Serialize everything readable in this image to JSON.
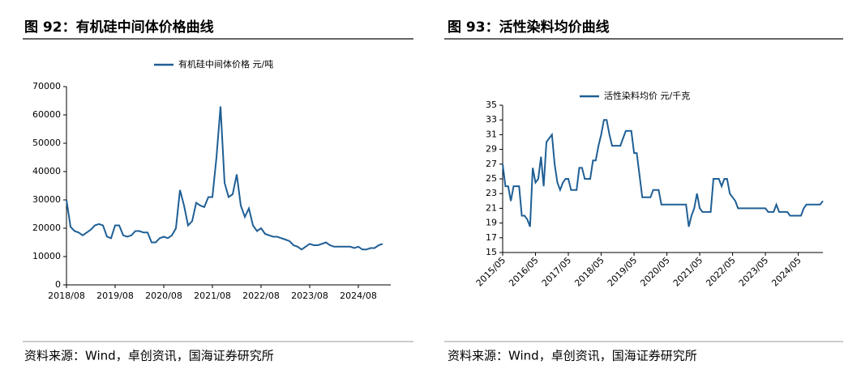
{
  "chart_data": [
    {
      "type": "line",
      "title": "图 92：有机硅中间体价格曲线",
      "source": "资料来源：Wind，卓创资讯，国海证券研究所",
      "x": [
        "2018/08",
        "2018/09",
        "2018/10",
        "2018/11",
        "2018/12",
        "2019/01",
        "2019/02",
        "2019/03",
        "2019/04",
        "2019/05",
        "2019/06",
        "2019/07",
        "2019/08",
        "2019/09",
        "2019/10",
        "2019/11",
        "2019/12",
        "2020/01",
        "2020/02",
        "2020/03",
        "2020/04",
        "2020/05",
        "2020/06",
        "2020/07",
        "2020/08",
        "2020/09",
        "2020/10",
        "2020/11",
        "2020/12",
        "2021/01",
        "2021/02",
        "2021/03",
        "2021/04",
        "2021/05",
        "2021/06",
        "2021/07",
        "2021/08",
        "2021/09",
        "2021/10",
        "2021/11",
        "2021/12",
        "2022/01",
        "2022/02",
        "2022/03",
        "2022/04",
        "2022/05",
        "2022/06",
        "2022/07",
        "2022/08",
        "2022/09",
        "2022/10",
        "2022/11",
        "2022/12",
        "2023/01",
        "2023/02",
        "2023/03",
        "2023/04",
        "2023/05",
        "2023/06",
        "2023/07",
        "2023/08",
        "2023/09",
        "2023/10",
        "2023/11",
        "2023/12",
        "2024/01",
        "2024/02",
        "2024/03",
        "2024/04",
        "2024/05",
        "2024/06",
        "2024/07",
        "2024/08",
        "2024/09",
        "2024/10",
        "2024/11",
        "2024/12",
        "2025/01",
        "2025/02"
      ],
      "series": [
        {
          "name": "有机硅中间体价格  元/吨",
          "color": "#1f5f95",
          "values": [
            30000,
            20500,
            19000,
            18500,
            17500,
            18500,
            19500,
            21000,
            21500,
            21000,
            17000,
            16500,
            21000,
            21000,
            17500,
            17000,
            17500,
            19000,
            19000,
            18500,
            18500,
            15000,
            15000,
            16500,
            17000,
            16500,
            17500,
            20000,
            33500,
            28000,
            21000,
            22500,
            29000,
            28000,
            27500,
            31000,
            31000,
            45000,
            63000,
            36000,
            31000,
            32000,
            39000,
            28000,
            24000,
            27000,
            21000,
            19000,
            20000,
            18000,
            17500,
            17000,
            17000,
            16500,
            16000,
            15500,
            14000,
            13500,
            12500,
            13500,
            14500,
            14000,
            14000,
            14500,
            15000,
            14000,
            13500,
            13500,
            13500,
            13500,
            13500,
            13000,
            13500,
            12500,
            12500,
            13000,
            13000,
            14000,
            14500
          ]
        }
      ],
      "xlim": [
        "2018/08",
        "2025/04"
      ],
      "xticks": [
        "2018/08",
        "2019/08",
        "2020/08",
        "2021/08",
        "2022/08",
        "2023/08",
        "2024/08"
      ],
      "ylim": [
        0,
        70000
      ],
      "yticks": [
        0,
        10000,
        20000,
        30000,
        40000,
        50000,
        60000,
        70000
      ],
      "grid": false,
      "rotate_xticks": false
    },
    {
      "type": "line",
      "title": "图 93：活性染料均价曲线",
      "source": "资料来源：Wind，卓创资讯，国海证券研究所",
      "x": [
        "2015/05",
        "2015/06",
        "2015/07",
        "2015/08",
        "2015/09",
        "2015/10",
        "2015/11",
        "2015/12",
        "2016/01",
        "2016/02",
        "2016/03",
        "2016/04",
        "2016/05",
        "2016/06",
        "2016/07",
        "2016/08",
        "2016/09",
        "2016/10",
        "2016/11",
        "2016/12",
        "2017/01",
        "2017/02",
        "2017/03",
        "2017/04",
        "2017/05",
        "2017/06",
        "2017/07",
        "2017/08",
        "2017/09",
        "2017/10",
        "2017/11",
        "2017/12",
        "2018/01",
        "2018/02",
        "2018/03",
        "2018/04",
        "2018/05",
        "2018/06",
        "2018/07",
        "2018/08",
        "2018/09",
        "2018/10",
        "2018/11",
        "2018/12",
        "2019/01",
        "2019/02",
        "2019/03",
        "2019/04",
        "2019/05",
        "2019/06",
        "2019/07",
        "2019/08",
        "2019/09",
        "2019/10",
        "2019/11",
        "2019/12",
        "2020/01",
        "2020/02",
        "2020/03",
        "2020/04",
        "2020/05",
        "2020/06",
        "2020/07",
        "2020/08",
        "2020/09",
        "2020/10",
        "2020/11",
        "2020/12",
        "2021/01",
        "2021/02",
        "2021/03",
        "2021/04",
        "2021/05",
        "2021/06",
        "2021/07",
        "2021/08",
        "2021/09",
        "2021/10",
        "2021/11",
        "2021/12",
        "2022/01",
        "2022/02",
        "2022/03",
        "2022/04",
        "2022/05",
        "2022/06",
        "2022/07",
        "2022/08",
        "2022/09",
        "2022/10",
        "2022/11",
        "2022/12",
        "2023/01",
        "2023/02",
        "2023/03",
        "2023/04",
        "2023/05",
        "2023/06",
        "2023/07",
        "2023/08",
        "2023/09",
        "2023/10",
        "2023/11",
        "2023/12",
        "2024/01",
        "2024/02",
        "2024/03",
        "2024/04",
        "2024/05",
        "2024/06",
        "2024/07",
        "2024/08",
        "2024/09",
        "2024/10",
        "2024/11",
        "2024/12",
        "2025/01",
        "2025/02"
      ],
      "series": [
        {
          "name": "活性染料均价  元/千克",
          "color": "#1f5f95",
          "values": [
            27,
            24,
            24,
            22,
            24,
            24,
            24,
            20,
            20,
            19.5,
            18.5,
            26.5,
            24.5,
            25,
            28,
            24,
            30,
            30.5,
            31,
            27,
            24.5,
            23.5,
            24.5,
            25,
            25,
            23.5,
            23.5,
            23.5,
            26.5,
            26.5,
            25,
            25,
            25,
            27.5,
            27.5,
            29.5,
            31,
            33,
            33,
            31,
            29.5,
            29.5,
            29.5,
            29.5,
            30.5,
            31.5,
            31.5,
            31.5,
            28.5,
            28.5,
            25.5,
            22.5,
            22.5,
            22.5,
            22.5,
            23.5,
            23.5,
            23.5,
            21.5,
            21.5,
            21.5,
            21.5,
            21.5,
            21.5,
            21.5,
            21.5,
            21.5,
            21.5,
            18.5,
            20,
            21,
            23,
            21,
            20.5,
            20.5,
            20.5,
            20.5,
            25,
            25,
            25,
            24,
            25,
            25,
            23,
            22.5,
            22,
            21,
            21,
            21,
            21,
            21,
            21,
            21,
            21,
            21,
            21,
            21,
            20.5,
            20.5,
            20.5,
            21.5,
            20.5,
            20.5,
            20.5,
            20.5,
            20,
            20,
            20,
            20,
            20,
            21,
            21.5,
            21.5,
            21.5,
            21.5,
            21.5,
            21.5,
            22
          ]
        }
      ],
      "xlim": [
        "2015/05",
        "2025/02"
      ],
      "xticks": [
        "2015/05",
        "2016/05",
        "2017/05",
        "2018/05",
        "2019/05",
        "2020/05",
        "2021/05",
        "2022/05",
        "2023/05",
        "2024/05"
      ],
      "ylim": [
        15,
        35
      ],
      "yticks": [
        15,
        17,
        19,
        21,
        23,
        25,
        27,
        29,
        31,
        33,
        35
      ],
      "grid": false,
      "rotate_xticks": true
    }
  ]
}
